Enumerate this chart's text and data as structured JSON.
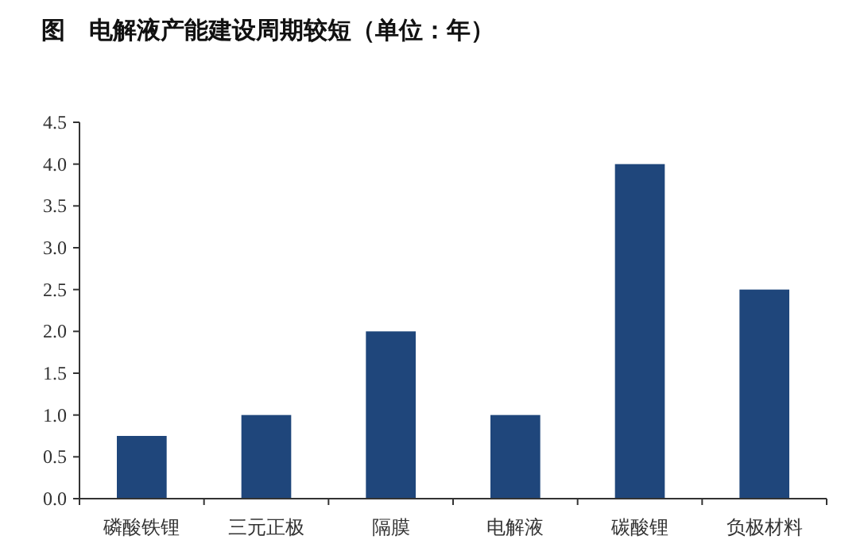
{
  "chart_data": {
    "type": "bar",
    "title": "图    电解液产能建设周期较短（单位：年）",
    "categories": [
      "磷酸铁锂",
      "三元正极",
      "隔膜",
      "电解液",
      "碳酸锂",
      "负极材料"
    ],
    "values": [
      0.75,
      1.0,
      2.0,
      1.0,
      4.0,
      2.5
    ],
    "color": "#1f467b",
    "ylim": [
      0,
      4.5
    ],
    "yticks": [
      {
        "value": 0,
        "label": "0.0"
      },
      {
        "value": 0.5,
        "label": "0.5"
      },
      {
        "value": 1,
        "label": "1.0"
      },
      {
        "value": 1.5,
        "label": "1.5"
      },
      {
        "value": 2,
        "label": "2.0"
      },
      {
        "value": 2.5,
        "label": "2.5"
      },
      {
        "value": 3,
        "label": "3.0"
      },
      {
        "value": 3.5,
        "label": "3.5"
      },
      {
        "value": 4,
        "label": "4.0"
      },
      {
        "value": 4.5,
        "label": "4.5"
      }
    ],
    "grid": false
  }
}
